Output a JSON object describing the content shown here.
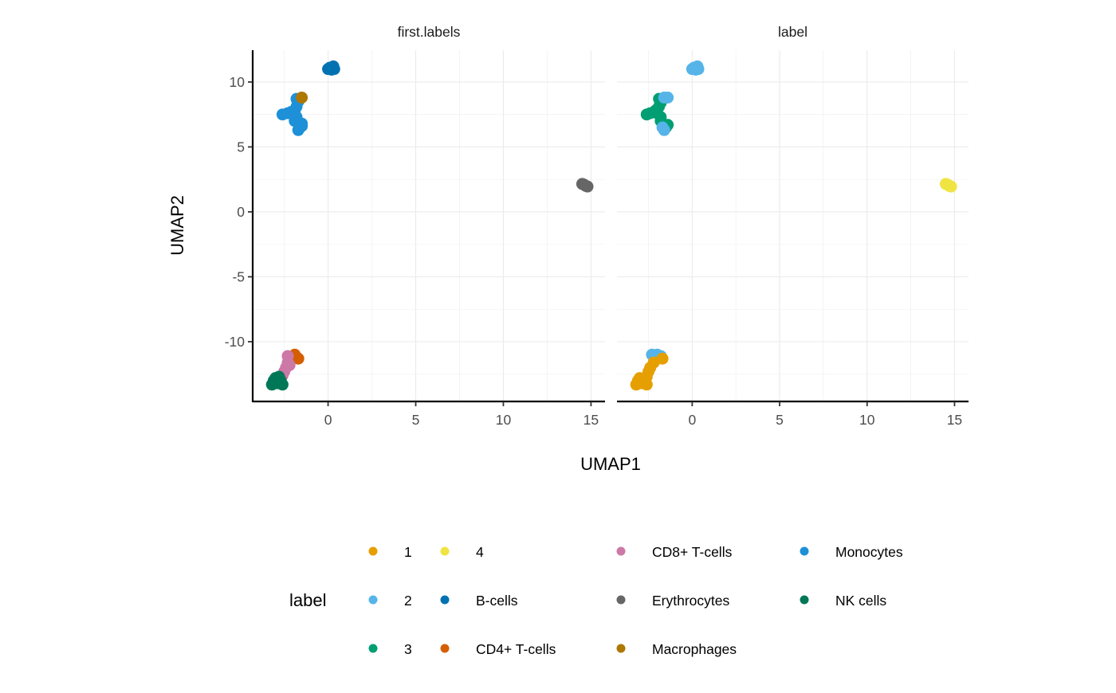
{
  "chart_data": {
    "type": "scatter",
    "xlabel": "UMAP1",
    "ylabel": "UMAP2",
    "xlim": [
      -4.3,
      15.8
    ],
    "ylim": [
      -14.6,
      12.45
    ],
    "x_ticks": [
      0,
      5,
      10,
      15
    ],
    "y_ticks": [
      -10,
      -5,
      0,
      5,
      10
    ],
    "x_tick_labels": [
      "0",
      "5",
      "10",
      "15"
    ],
    "y_tick_labels": [
      "-10",
      "-5",
      "0",
      "5",
      "10"
    ],
    "grid": true,
    "legend": {
      "title": "label",
      "position": "bottom",
      "entries": [
        {
          "label": "1",
          "color": "#E69F00"
        },
        {
          "label": "2",
          "color": "#56B4E9"
        },
        {
          "label": "3",
          "color": "#009E73"
        },
        {
          "label": "4",
          "color": "#F0E442"
        },
        {
          "label": "B-cells",
          "color": "#0072B2"
        },
        {
          "label": "CD4+ T-cells",
          "color": "#D55E00"
        },
        {
          "label": "CD8+ T-cells",
          "color": "#CC79A7"
        },
        {
          "label": "Erythrocytes",
          "color": "#666666"
        },
        {
          "label": "Macrophages",
          "color": "#AD7700"
        },
        {
          "label": "Monocytes",
          "color": "#1E90D8"
        },
        {
          "label": "NK cells",
          "color": "#007756"
        }
      ]
    },
    "panels": [
      {
        "strip": "first.labels",
        "series": [
          {
            "name": "Monocytes",
            "color": "#1E90D8",
            "points": [
              [
                -1.8,
                8.7
              ],
              [
                -1.7,
                8.5
              ],
              [
                -1.8,
                8.1
              ],
              [
                -1.9,
                7.8
              ],
              [
                -2.3,
                7.6
              ],
              [
                -2.6,
                7.5
              ],
              [
                -2.1,
                7.7
              ],
              [
                -1.8,
                7.3
              ],
              [
                -1.9,
                7.0
              ],
              [
                -1.7,
                6.8
              ],
              [
                -1.6,
                6.5
              ],
              [
                -1.7,
                6.3
              ],
              [
                -1.5,
                6.6
              ],
              [
                -1.5,
                6.8
              ],
              [
                -2.0,
                7.6
              ]
            ]
          },
          {
            "name": "Macrophages",
            "color": "#AD7700",
            "points": [
              [
                -1.5,
                8.8
              ]
            ]
          },
          {
            "name": "B-cells",
            "color": "#0072B2",
            "points": [
              [
                0.1,
                11.1
              ],
              [
                0.3,
                11.2
              ],
              [
                0.2,
                10.95
              ],
              [
                0.0,
                11.0
              ],
              [
                0.35,
                11.0
              ]
            ]
          },
          {
            "name": "Erythrocytes",
            "color": "#666666",
            "points": [
              [
                14.5,
                2.15
              ],
              [
                14.7,
                2.0
              ],
              [
                14.6,
                2.1
              ],
              [
                14.8,
                1.95
              ]
            ]
          },
          {
            "name": "CD4+ T-cells",
            "color": "#D55E00",
            "points": [
              [
                -2.0,
                -11.1
              ],
              [
                -1.8,
                -11.2
              ],
              [
                -1.7,
                -11.3
              ],
              [
                -1.9,
                -11.0
              ]
            ]
          },
          {
            "name": "CD8+ T-cells",
            "color": "#CC79A7",
            "points": [
              [
                -2.3,
                -11.1
              ],
              [
                -2.2,
                -11.8
              ],
              [
                -2.4,
                -12.0
              ],
              [
                -2.5,
                -12.3
              ],
              [
                -2.6,
                -12.6
              ],
              [
                -2.3,
                -11.6
              ]
            ]
          },
          {
            "name": "NK cells",
            "color": "#007756",
            "points": [
              [
                -3.1,
                -13.0
              ],
              [
                -3.2,
                -13.3
              ],
              [
                -2.9,
                -13.2
              ],
              [
                -2.7,
                -13.0
              ],
              [
                -2.6,
                -13.3
              ],
              [
                -3.0,
                -12.8
              ],
              [
                -2.8,
                -12.7
              ]
            ]
          }
        ]
      },
      {
        "strip": "label",
        "series": [
          {
            "name": "3",
            "color": "#009E73",
            "points": [
              [
                -1.9,
                8.7
              ],
              [
                -1.8,
                8.4
              ],
              [
                -1.9,
                8.1
              ],
              [
                -2.1,
                7.8
              ],
              [
                -2.4,
                7.6
              ],
              [
                -2.6,
                7.5
              ],
              [
                -2.0,
                7.6
              ],
              [
                -1.8,
                7.3
              ],
              [
                -1.8,
                7.0
              ],
              [
                -1.6,
                6.7
              ],
              [
                -1.5,
                6.5
              ],
              [
                -1.4,
                6.7
              ]
            ]
          },
          {
            "name": "2",
            "color": "#56B4E9",
            "points": [
              [
                -1.6,
                8.8
              ],
              [
                -1.4,
                8.8
              ],
              [
                -1.7,
                6.5
              ],
              [
                -1.6,
                6.3
              ],
              [
                0.1,
                11.1
              ],
              [
                0.3,
                11.2
              ],
              [
                0.2,
                10.95
              ],
              [
                0.0,
                11.0
              ],
              [
                0.35,
                11.0
              ],
              [
                -2.3,
                -11.0
              ],
              [
                -2.0,
                -11.0
              ],
              [
                -1.8,
                -11.1
              ]
            ]
          },
          {
            "name": "4",
            "color": "#F0E442",
            "points": [
              [
                14.5,
                2.15
              ],
              [
                14.7,
                2.0
              ],
              [
                14.6,
                2.1
              ],
              [
                14.8,
                1.95
              ]
            ]
          },
          {
            "name": "1",
            "color": "#E69F00",
            "points": [
              [
                -1.7,
                -11.3
              ],
              [
                -2.2,
                -11.6
              ],
              [
                -2.4,
                -12.0
              ],
              [
                -2.5,
                -12.3
              ],
              [
                -2.6,
                -12.7
              ],
              [
                -3.1,
                -13.0
              ],
              [
                -3.2,
                -13.3
              ],
              [
                -2.9,
                -13.2
              ],
              [
                -2.7,
                -13.0
              ],
              [
                -2.6,
                -13.3
              ],
              [
                -3.0,
                -12.8
              ]
            ]
          }
        ]
      }
    ]
  }
}
